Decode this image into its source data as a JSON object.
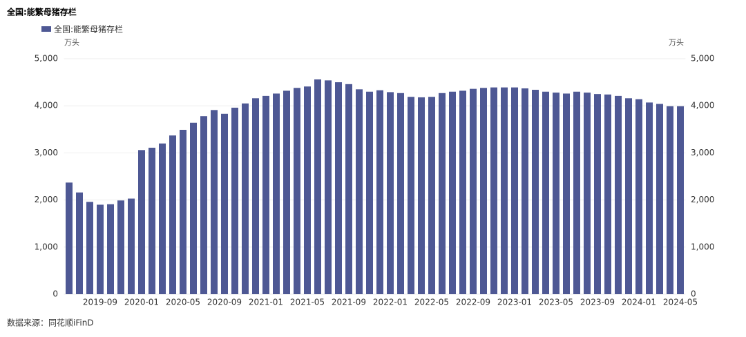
{
  "chart_data": {
    "type": "bar",
    "title": "全国:能繁母猪存栏",
    "y_unit": "万头",
    "y2_unit": "万头",
    "source": "数据来源：同花顺iFinD",
    "series": [
      {
        "name": "全国:能繁母猪存栏",
        "color": "#4e5894",
        "values": [
          2370,
          2160,
          1960,
          1900,
          1910,
          1990,
          2030,
          3060,
          3110,
          3200,
          3370,
          3490,
          3640,
          3780,
          3910,
          3830,
          3960,
          4050,
          4160,
          4210,
          4260,
          4320,
          4380,
          4410,
          4560,
          4540,
          4500,
          4460,
          4350,
          4300,
          4330,
          4290,
          4270,
          4190,
          4180,
          4190,
          4270,
          4300,
          4320,
          4360,
          4380,
          4390,
          4390,
          4390,
          4370,
          4340,
          4300,
          4280,
          4260,
          4300,
          4280,
          4250,
          4240,
          4210,
          4160,
          4140,
          4070,
          4040,
          3990,
          3990
        ]
      }
    ],
    "categories": [
      null,
      null,
      null,
      "2019-09",
      null,
      null,
      null,
      "2020-01",
      null,
      null,
      null,
      "2020-05",
      null,
      null,
      null,
      "2020-09",
      null,
      null,
      null,
      "2021-01",
      null,
      null,
      null,
      "2021-05",
      null,
      null,
      null,
      "2021-09",
      null,
      null,
      null,
      "2022-01",
      null,
      null,
      null,
      "2022-05",
      null,
      null,
      null,
      "2022-09",
      null,
      null,
      null,
      "2023-01",
      null,
      null,
      null,
      "2023-05",
      null,
      null,
      null,
      "2023-09",
      null,
      null,
      null,
      "2024-01",
      null,
      null,
      null,
      "2024-05"
    ],
    "ylim": [
      0,
      5000
    ],
    "yticks": [
      0,
      {
        "value": 1000,
        "label": "1,000"
      },
      {
        "value": 2000,
        "label": "2,000"
      },
      {
        "value": 3000,
        "label": "3,000"
      },
      {
        "value": 4000,
        "label": "4,000"
      },
      {
        "value": 5000,
        "label": "5,000"
      }
    ],
    "y2lim": [
      0,
      5000
    ],
    "y2ticks": [
      0,
      {
        "value": 1000,
        "label": "1,000"
      },
      {
        "value": 2000,
        "label": "2,000"
      },
      {
        "value": 3000,
        "label": "3,000"
      },
      {
        "value": 4000,
        "label": "4,000"
      },
      {
        "value": 5000,
        "label": "5,000"
      }
    ],
    "grid": true,
    "legend": "top-left"
  }
}
